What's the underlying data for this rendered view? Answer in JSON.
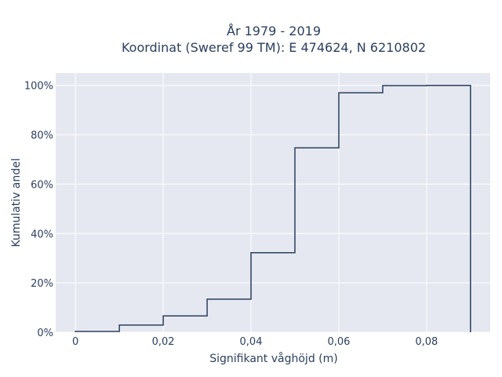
{
  "chart_data": {
    "type": "line",
    "subtype": "cumulative-step-histogram",
    "title_lines": [
      "År 1979 - 2019",
      "Koordinat (Sweref 99 TM): E 474624, N 6210802"
    ],
    "xlabel": "Signifikant våghöjd (m)",
    "ylabel": "Kumulativ andel",
    "xlim": [
      -0.0045,
      0.0945
    ],
    "ylim": [
      0,
      1.05
    ],
    "x_ticks": [
      0,
      0.02,
      0.04,
      0.06,
      0.08
    ],
    "x_tick_labels": [
      "0",
      "0,02",
      "0,04",
      "0,06",
      "0,08"
    ],
    "y_ticks": [
      0,
      0.2,
      0.4,
      0.6,
      0.8,
      1.0
    ],
    "y_tick_labels": [
      "0%",
      "20%",
      "40%",
      "60%",
      "80%",
      "100%"
    ],
    "bin_edges": [
      0,
      0.01,
      0.02,
      0.03,
      0.04,
      0.05,
      0.06,
      0.07,
      0.08,
      0.09
    ],
    "cumulative_values": [
      0.003,
      0.029,
      0.066,
      0.134,
      0.322,
      0.747,
      0.97,
      0.999,
      1.0
    ],
    "grid": true,
    "line_color": "#2a3f5f",
    "plot_bg": "#e5e8f0"
  }
}
